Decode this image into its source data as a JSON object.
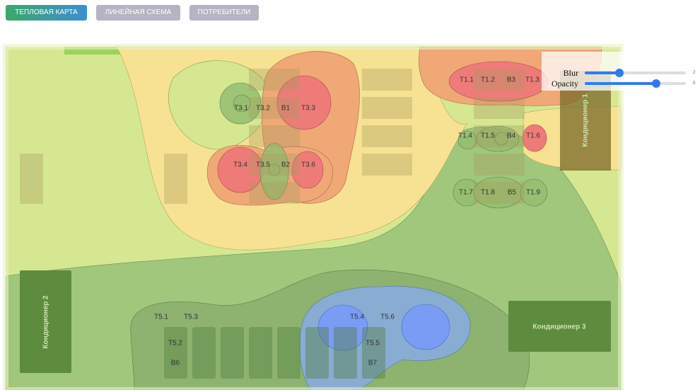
{
  "tabs": [
    "ТЕПЛОВАЯ КАРТА",
    "ЛИНЕЙНАЯ СХЕМА",
    "ПОТРЕБИТЕЛИ"
  ],
  "controls": [
    {
      "label": "Blur",
      "value": 2
    },
    {
      "label": "Opacity",
      "value": 6
    }
  ],
  "sensors": [
    "T1.1",
    "T1.2",
    "B3",
    "T1.3",
    "T3.1",
    "T3.2",
    "B1",
    "T3.3",
    "T1.4",
    "T1.5",
    "B4",
    "T1.6",
    "T3.4",
    "T3.5",
    "B2",
    "T3.6",
    "T1.7",
    "T1.8",
    "B5",
    "T1.9",
    "T5.1",
    "T5.3",
    "T5.4",
    "T5.6",
    "T5.2",
    "T5.5",
    "B6",
    "B7"
  ],
  "conditioners": [
    "Кондиционер 1",
    "Кондиционер 2",
    "Кондиционер 3"
  ]
}
